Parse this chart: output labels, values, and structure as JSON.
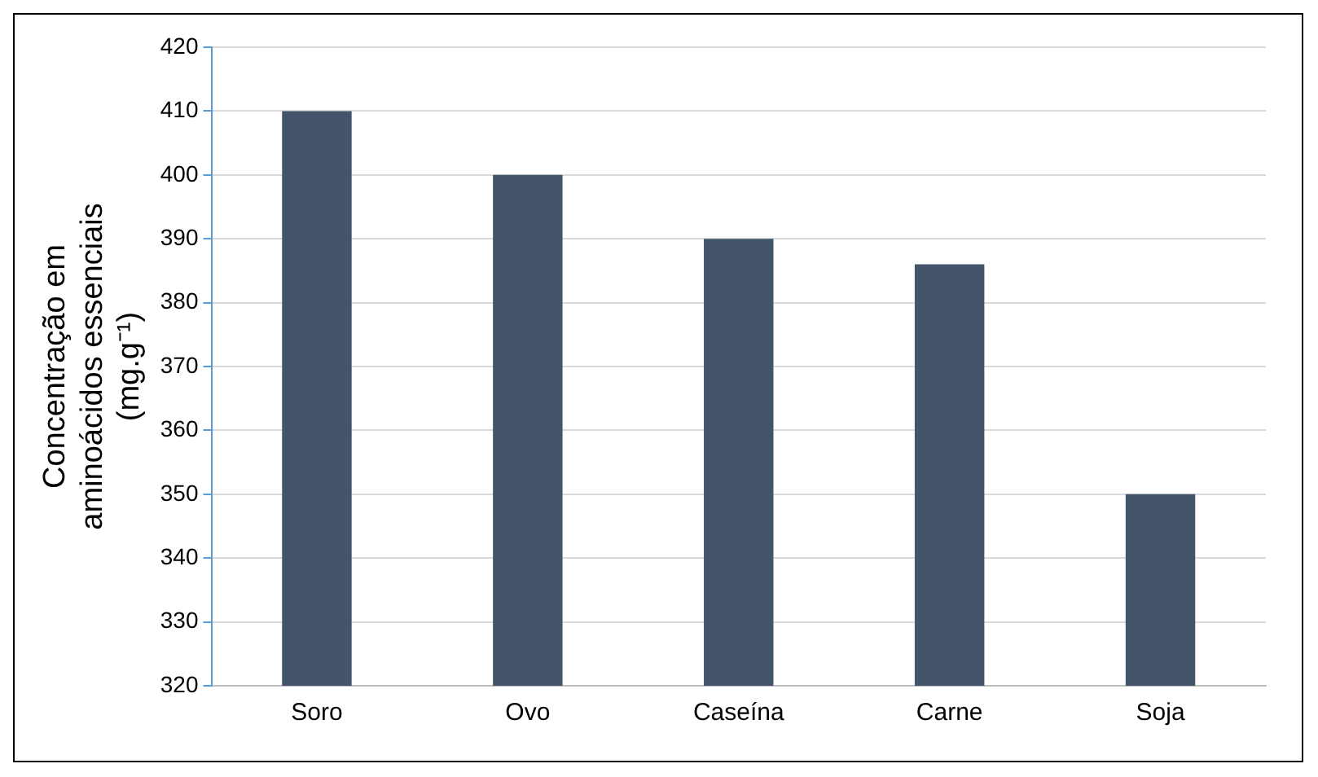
{
  "chart_data": {
    "type": "bar",
    "categories": [
      "Soro",
      "Ovo",
      "Caseína",
      "Carne",
      "Soja"
    ],
    "values": [
      410,
      400,
      390,
      386,
      350
    ],
    "color": "#44546a",
    "ylabel": "Concentração em\naminoácidos essenciais\n(mg.g⁻¹)",
    "ylim": [
      320,
      420
    ],
    "yticks": [
      320,
      330,
      340,
      350,
      360,
      370,
      380,
      390,
      400,
      410,
      420
    ],
    "grid": "y",
    "legend": false
  }
}
